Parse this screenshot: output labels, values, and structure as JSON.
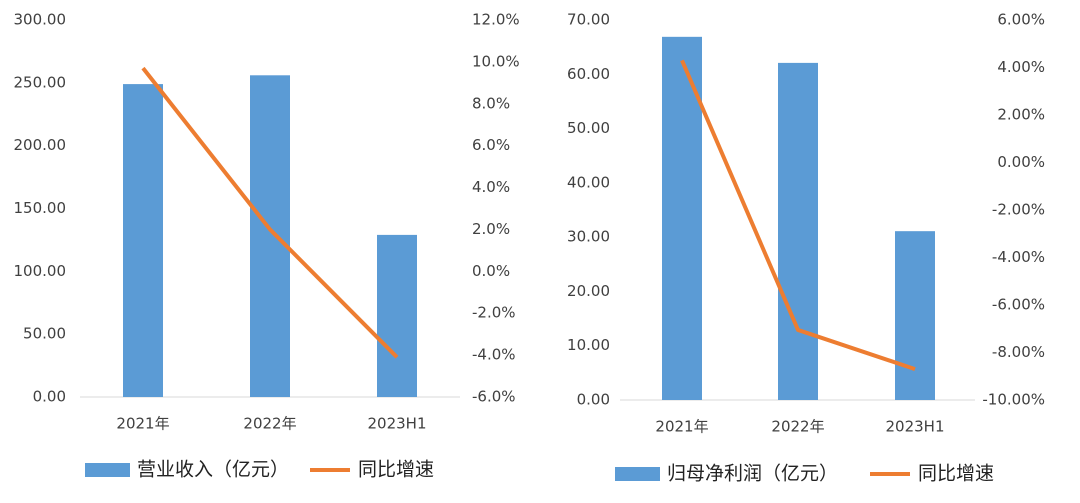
{
  "chart_data": [
    {
      "type": "bar_line",
      "categories": [
        "2021年",
        "2022年",
        "2023H1"
      ],
      "series": [
        {
          "name": "营业收入（亿元）",
          "type": "bar",
          "color": "#5b9bd5",
          "values": [
            249,
            256,
            129
          ]
        },
        {
          "name": "同比增速",
          "type": "line",
          "axis": "y2",
          "color": "#ed7d31",
          "values": [
            9.7,
            2.0,
            -4.1
          ]
        }
      ],
      "ylim": [
        0,
        300
      ],
      "yticks": [
        {
          "value": 0,
          "label": "0.00"
        },
        {
          "value": 50,
          "label": "50.00"
        },
        {
          "value": 100,
          "label": "100.00"
        },
        {
          "value": 150,
          "label": "150.00"
        },
        {
          "value": 200,
          "label": "200.00"
        },
        {
          "value": 250,
          "label": "250.00"
        },
        {
          "value": 300,
          "label": "300.00"
        }
      ],
      "y2lim": [
        -6,
        12
      ],
      "y2ticks": [
        {
          "value": -6,
          "label": "-6.0%"
        },
        {
          "value": -4,
          "label": "-4.0%"
        },
        {
          "value": -2,
          "label": "-2.0%"
        },
        {
          "value": 0,
          "label": "0.0%"
        },
        {
          "value": 2,
          "label": "2.0%"
        },
        {
          "value": 4,
          "label": "4.0%"
        },
        {
          "value": 6,
          "label": "6.0%"
        },
        {
          "value": 8,
          "label": "8.0%"
        },
        {
          "value": 10,
          "label": "10.0%"
        },
        {
          "value": 12,
          "label": "12.0%"
        }
      ],
      "legend": "bottom"
    },
    {
      "type": "bar_line",
      "categories": [
        "2021年",
        "2022年",
        "2023H1"
      ],
      "series": [
        {
          "name": "归母净利润（亿元）",
          "type": "bar",
          "color": "#5b9bd5",
          "values": [
            66.9,
            62.1,
            31.1
          ]
        },
        {
          "name": "同比增速",
          "type": "line",
          "axis": "y2",
          "color": "#ed7d31",
          "values": [
            4.3,
            -7.05,
            -8.7
          ]
        }
      ],
      "ylim": [
        0,
        70
      ],
      "yticks": [
        {
          "value": 0,
          "label": "0.00"
        },
        {
          "value": 10,
          "label": "10.00"
        },
        {
          "value": 20,
          "label": "20.00"
        },
        {
          "value": 30,
          "label": "30.00"
        },
        {
          "value": 40,
          "label": "40.00"
        },
        {
          "value": 50,
          "label": "50.00"
        },
        {
          "value": 60,
          "label": "60.00"
        },
        {
          "value": 70,
          "label": "70.00"
        }
      ],
      "y2lim": [
        -10,
        6
      ],
      "y2ticks": [
        {
          "value": -10,
          "label": "-10.00%"
        },
        {
          "value": -8,
          "label": "-8.00%"
        },
        {
          "value": -6,
          "label": "-6.00%"
        },
        {
          "value": -4,
          "label": "-4.00%"
        },
        {
          "value": -2,
          "label": "-2.00%"
        },
        {
          "value": 0,
          "label": "0.00%"
        },
        {
          "value": 2,
          "label": "2.00%"
        },
        {
          "value": 4,
          "label": "4.00%"
        },
        {
          "value": 6,
          "label": "6.00%"
        }
      ],
      "legend": "bottom"
    }
  ]
}
